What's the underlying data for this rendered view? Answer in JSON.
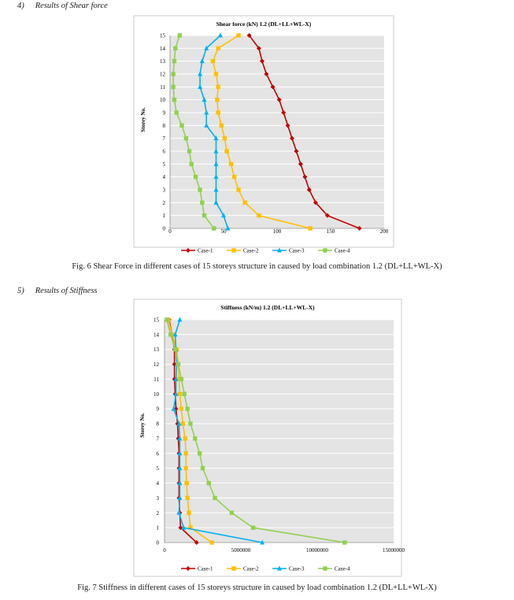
{
  "headings": [
    {
      "num": "4)",
      "text": "Results of Shear force"
    },
    {
      "num": "5)",
      "text": "Results of Stiffness"
    }
  ],
  "captions": [
    "Fig. 6 Shear Force in different cases of 15 storeys structure in caused by load combination 1.2 (DL+LL+WL-X)",
    "Fig. 7 Stiffness in different cases of 15 storeys structure in caused by load combination 1.2 (DL+LL+WL-X)"
  ],
  "colors": {
    "Case-1": "#c00000",
    "Case-2": "#ffc000",
    "Case-3": "#00b0f0",
    "Case-4": "#92d050",
    "plot_bg": "#e4e4e4",
    "grid": "#ffffff"
  },
  "chart_data": [
    {
      "type": "line",
      "title": "Shear force (kN) 1.2 (DL+LL+WL-X)",
      "xlabel": "",
      "ylabel": "Storey No.",
      "xlim": [
        0,
        200
      ],
      "xticks": [
        "0",
        "50",
        "100",
        "150",
        "200"
      ],
      "y": [
        0,
        1,
        2,
        3,
        4,
        5,
        6,
        7,
        8,
        9,
        10,
        11,
        12,
        13,
        14,
        15
      ],
      "yticks": [
        "0",
        "1",
        "2",
        "3",
        "4",
        "5",
        "6",
        "7",
        "8",
        "9",
        "10",
        "11",
        "12",
        "13",
        "14",
        "15"
      ],
      "grid": "horizontal",
      "legend": "bottom",
      "series": [
        {
          "name": "Case-1",
          "marker": "diamond",
          "values": [
            177,
            147,
            136,
            130,
            126,
            122,
            118,
            114,
            110,
            106,
            102,
            96,
            90,
            86,
            83,
            74
          ]
        },
        {
          "name": "Case-2",
          "marker": "square",
          "values": [
            131,
            83,
            70,
            64,
            60,
            57,
            53,
            51,
            48,
            45,
            44,
            45,
            43,
            40,
            45,
            64
          ]
        },
        {
          "name": "Case-3",
          "marker": "triangle",
          "values": [
            54,
            50,
            43,
            43,
            43,
            43,
            43,
            43,
            34,
            34,
            32,
            28,
            28,
            30,
            34,
            47
          ]
        },
        {
          "name": "Case-4",
          "marker": "square",
          "values": [
            41,
            32,
            30,
            28,
            24,
            20,
            18,
            15,
            11,
            6,
            4,
            3,
            3,
            4,
            5,
            9
          ]
        }
      ]
    },
    {
      "type": "line",
      "title": "Stiffness (kN/m) 1.2 (DL+LL+WL-X)",
      "xlabel": "",
      "ylabel": "Storey No.",
      "xlim": [
        0,
        15000000
      ],
      "xticks": [
        "0",
        "5000000",
        "10000000",
        "15000000"
      ],
      "y": [
        0,
        1,
        2,
        3,
        4,
        5,
        6,
        7,
        8,
        9,
        10,
        11,
        12,
        13,
        14,
        15
      ],
      "yticks": [
        "0",
        "1",
        "2",
        "3",
        "4",
        "5",
        "6",
        "7",
        "8",
        "9",
        "10",
        "11",
        "12",
        "13",
        "14",
        "15"
      ],
      "grid": "horizontal",
      "legend": "bottom",
      "series": [
        {
          "name": "Case-1",
          "marker": "diamond",
          "values": [
            2100000,
            1050000,
            1000000,
            950000,
            950000,
            950000,
            950000,
            900000,
            850000,
            750000,
            700000,
            650000,
            650000,
            650000,
            500000,
            300000
          ]
        },
        {
          "name": "Case-2",
          "marker": "square",
          "values": [
            3100000,
            1700000,
            1600000,
            1500000,
            1450000,
            1400000,
            1400000,
            1350000,
            1200000,
            1100000,
            1000000,
            950000,
            900000,
            800000,
            500000,
            250000
          ]
        },
        {
          "name": "Case-3",
          "marker": "triangle",
          "values": [
            6400000,
            1250000,
            950000,
            1000000,
            1000000,
            1000000,
            1000000,
            1000000,
            950000,
            600000,
            750000,
            750000,
            800000,
            750000,
            700000,
            1000000
          ]
        },
        {
          "name": "Case-4",
          "marker": "square",
          "values": [
            11800000,
            5800000,
            4400000,
            3300000,
            2900000,
            2500000,
            2300000,
            2000000,
            1700000,
            1500000,
            1300000,
            1100000,
            900000,
            700000,
            400000,
            150000
          ]
        }
      ]
    }
  ]
}
